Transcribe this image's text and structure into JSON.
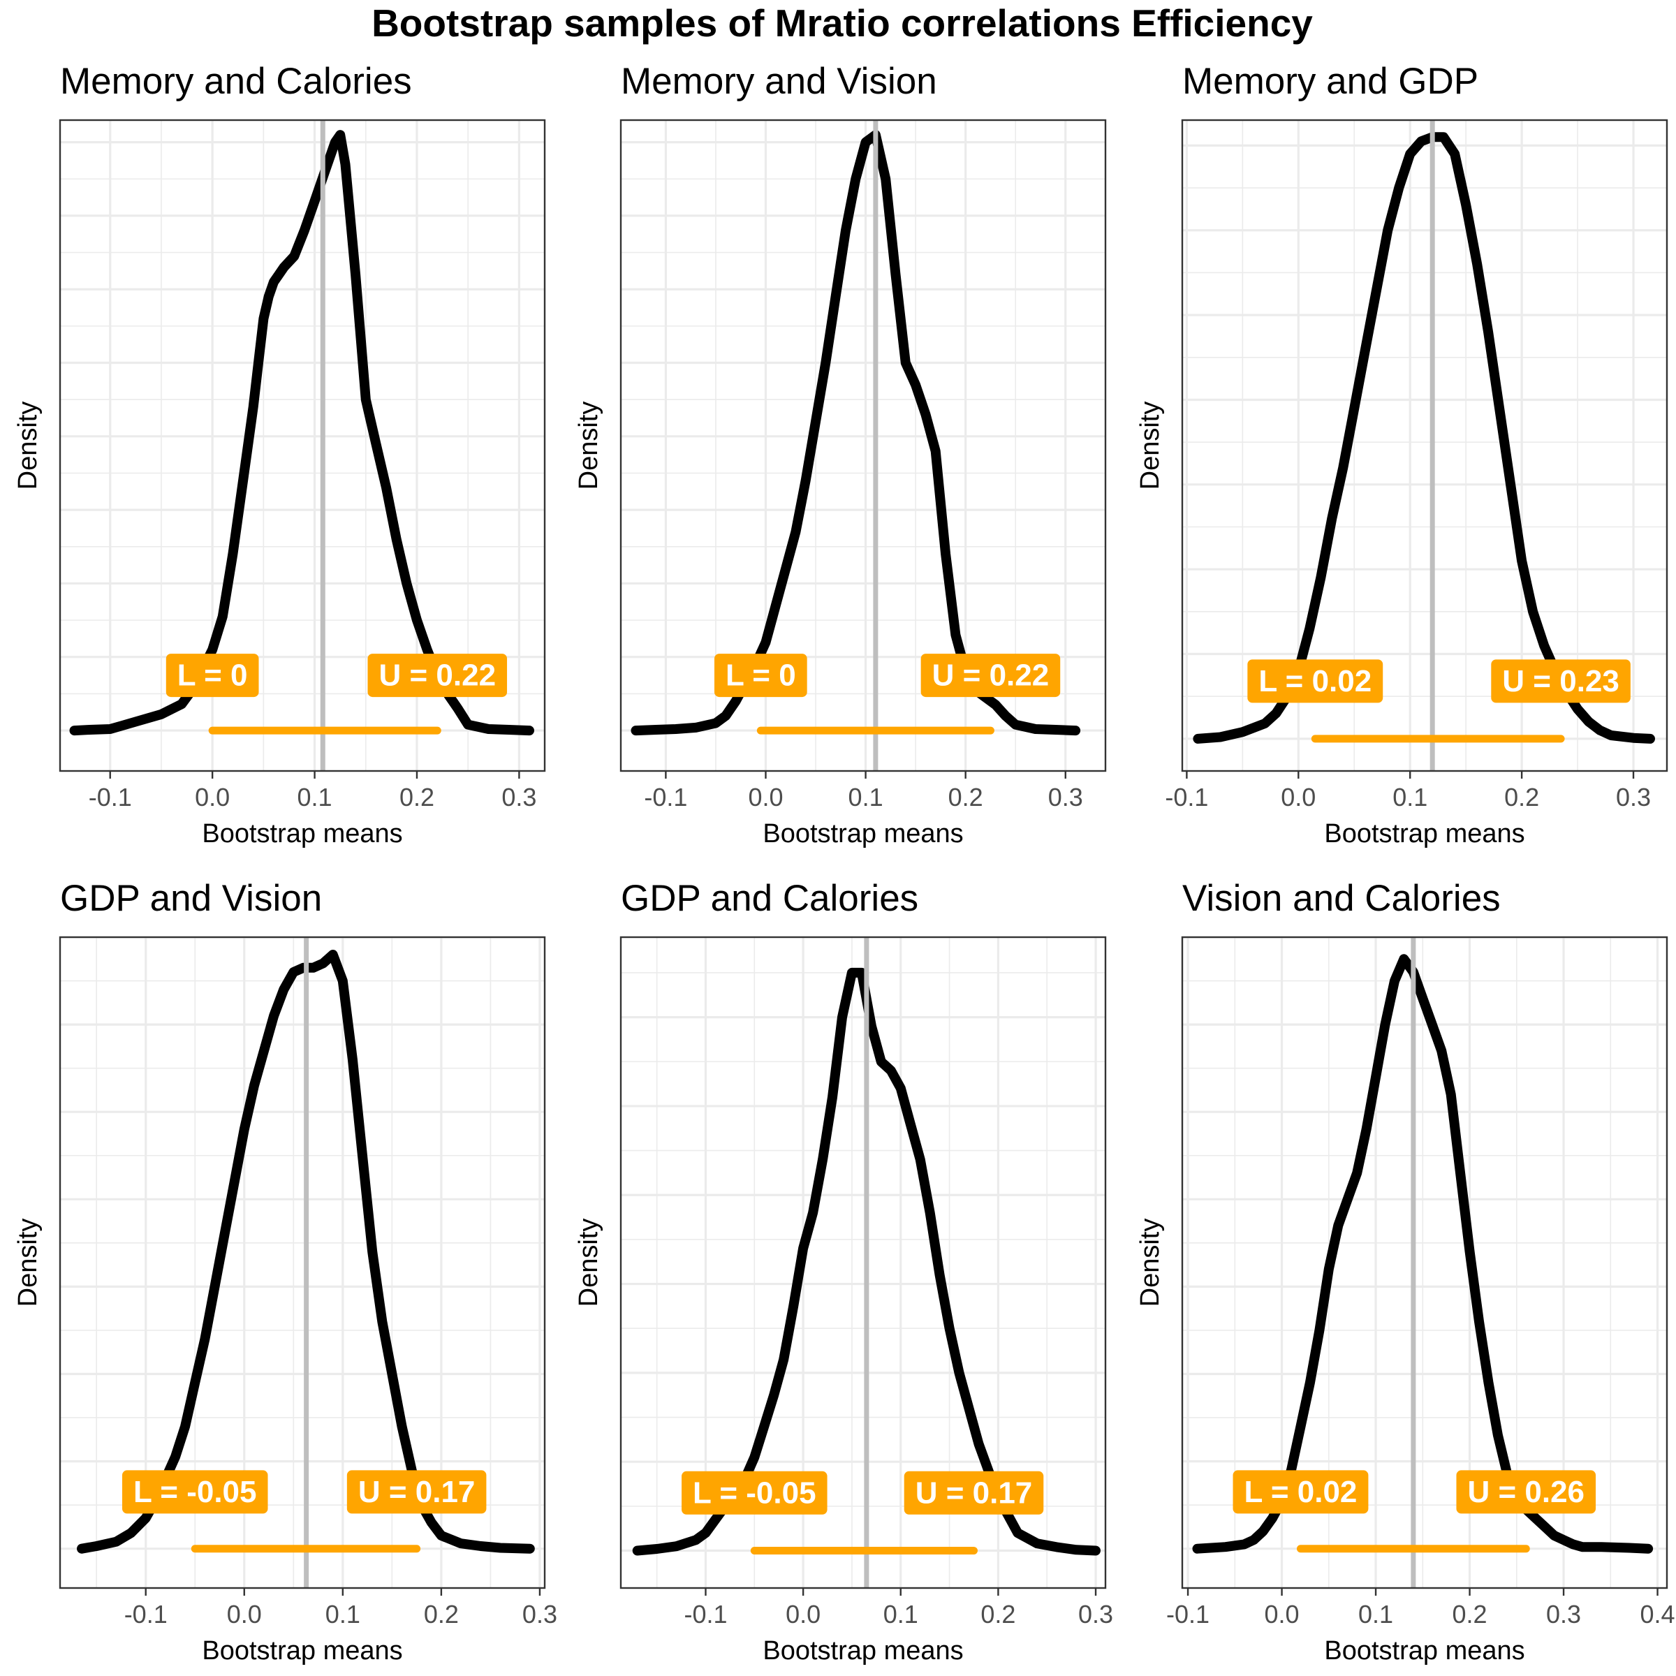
{
  "title": "Bootstrap samples of Mratio correlations Efficiency",
  "colors": {
    "density_line": "#000000",
    "mean_line": "#bebebe",
    "interval": "#FFA500",
    "label_text": "#ffffff",
    "grid": "#ebebeb",
    "panel_border": "#333333",
    "tick_text": "#4d4d4d"
  },
  "chart_data": [
    {
      "type": "line",
      "title": "Memory and Calories",
      "xlabel": "Bootstrap means",
      "ylabel": "Density",
      "xlim": [
        -0.149,
        0.325
      ],
      "ylim": [
        -0.55,
        8.3
      ],
      "xticks": [
        -0.1,
        0.0,
        0.1,
        0.2,
        0.3
      ],
      "tick_labels": [
        "-0.1",
        "0.0",
        "0.1",
        "0.2",
        "0.3"
      ],
      "mean": 0.108,
      "ci": {
        "lower": 0.0,
        "upper": 0.22
      },
      "ci_labels": {
        "lower": "L =  0",
        "upper": "U =  0.22"
      },
      "label_y": 0.75,
      "grid": true,
      "density": {
        "x": [
          -0.135,
          -0.12,
          -0.1,
          -0.09,
          -0.07,
          -0.05,
          -0.03,
          -0.02,
          -0.01,
          0.0,
          0.01,
          0.02,
          0.03,
          0.035,
          0.04,
          0.045,
          0.05,
          0.055,
          0.06,
          0.065,
          0.07,
          0.08,
          0.09,
          0.1,
          0.11,
          0.12,
          0.125,
          0.13,
          0.14,
          0.15,
          0.16,
          0.17,
          0.18,
          0.19,
          0.2,
          0.21,
          0.22,
          0.23,
          0.24,
          0.25,
          0.27,
          0.29,
          0.31
        ],
        "y": [
          0.0,
          0.01,
          0.02,
          0.06,
          0.14,
          0.22,
          0.36,
          0.55,
          0.82,
          1.1,
          1.55,
          2.4,
          3.4,
          3.9,
          4.4,
          5.0,
          5.6,
          5.9,
          6.1,
          6.2,
          6.3,
          6.45,
          6.8,
          7.2,
          7.6,
          8.0,
          8.1,
          7.7,
          6.2,
          4.5,
          3.9,
          3.3,
          2.6,
          2.0,
          1.5,
          1.1,
          0.75,
          0.5,
          0.3,
          0.08,
          0.02,
          0.01,
          0.0
        ]
      }
    },
    {
      "type": "line",
      "title": "Memory and Vision",
      "xlabel": "Bootstrap means",
      "ylabel": "Density",
      "xlim": [
        -0.145,
        0.34
      ],
      "ylim": [
        -0.55,
        8.3
      ],
      "xticks": [
        -0.1,
        0.0,
        0.1,
        0.2,
        0.3
      ],
      "tick_labels": [
        "-0.1",
        "0.0",
        "0.1",
        "0.2",
        "0.3"
      ],
      "mean": 0.11,
      "ci": {
        "lower": -0.005,
        "upper": 0.225
      },
      "ci_labels": {
        "lower": "L =  0",
        "upper": "U =  0.22"
      },
      "label_y": 0.75,
      "grid": true,
      "density": {
        "x": [
          -0.13,
          -0.11,
          -0.09,
          -0.07,
          -0.05,
          -0.04,
          -0.03,
          -0.02,
          -0.01,
          0.0,
          0.01,
          0.02,
          0.03,
          0.04,
          0.05,
          0.06,
          0.07,
          0.08,
          0.09,
          0.1,
          0.11,
          0.12,
          0.13,
          0.14,
          0.15,
          0.16,
          0.17,
          0.18,
          0.19,
          0.2,
          0.21,
          0.22,
          0.23,
          0.24,
          0.25,
          0.27,
          0.29,
          0.31
        ],
        "y": [
          0.0,
          0.01,
          0.02,
          0.04,
          0.1,
          0.2,
          0.4,
          0.65,
          0.9,
          1.2,
          1.7,
          2.2,
          2.7,
          3.4,
          4.2,
          5.0,
          5.9,
          6.8,
          7.5,
          8.0,
          8.1,
          7.5,
          6.2,
          5.0,
          4.7,
          4.3,
          3.8,
          2.4,
          1.3,
          0.8,
          0.55,
          0.45,
          0.35,
          0.2,
          0.08,
          0.02,
          0.01,
          0.0
        ]
      }
    },
    {
      "type": "line",
      "title": "Memory and GDP",
      "xlabel": "Bootstrap means",
      "ylabel": "Density",
      "xlim": [
        -0.104,
        0.33
      ],
      "ylim": [
        -0.38,
        7.3
      ],
      "xticks": [
        -0.1,
        0.0,
        0.1,
        0.2,
        0.3
      ],
      "tick_labels": [
        "-0.1",
        "0.0",
        "0.1",
        "0.2",
        "0.3"
      ],
      "mean": 0.12,
      "ci": {
        "lower": 0.015,
        "upper": 0.235
      },
      "ci_labels": {
        "lower": "L =  0.02",
        "upper": "U =  0.23"
      },
      "label_y": 0.68,
      "grid": true,
      "density": {
        "x": [
          -0.09,
          -0.07,
          -0.05,
          -0.03,
          -0.02,
          -0.01,
          0.0,
          0.01,
          0.02,
          0.03,
          0.04,
          0.05,
          0.06,
          0.07,
          0.08,
          0.09,
          0.1,
          0.11,
          0.12,
          0.13,
          0.14,
          0.15,
          0.16,
          0.17,
          0.18,
          0.19,
          0.2,
          0.21,
          0.22,
          0.23,
          0.24,
          0.25,
          0.26,
          0.27,
          0.28,
          0.3,
          0.315
        ],
        "y": [
          0.0,
          0.02,
          0.08,
          0.18,
          0.3,
          0.5,
          0.8,
          1.3,
          1.9,
          2.6,
          3.2,
          3.9,
          4.6,
          5.3,
          6.0,
          6.5,
          6.9,
          7.05,
          7.1,
          7.1,
          6.9,
          6.3,
          5.6,
          4.8,
          3.9,
          3.0,
          2.1,
          1.5,
          1.1,
          0.8,
          0.55,
          0.35,
          0.2,
          0.1,
          0.04,
          0.01,
          0.0
        ]
      }
    },
    {
      "type": "line",
      "title": "GDP and Vision",
      "xlabel": "Bootstrap means",
      "ylabel": "Density",
      "xlim": [
        -0.187,
        0.305
      ],
      "ylim": [
        -0.45,
        7.0
      ],
      "xticks": [
        -0.1,
        0.0,
        0.1,
        0.2,
        0.3
      ],
      "tick_labels": [
        "-0.1",
        "0.0",
        "0.1",
        "0.2",
        "0.3"
      ],
      "mean": 0.063,
      "ci": {
        "lower": -0.05,
        "upper": 0.175
      },
      "ci_labels": {
        "lower": "L =  -0.05",
        "upper": "U =  0.17"
      },
      "label_y": 0.65,
      "grid": true,
      "density": {
        "x": [
          -0.165,
          -0.15,
          -0.13,
          -0.115,
          -0.1,
          -0.09,
          -0.08,
          -0.07,
          -0.06,
          -0.05,
          -0.04,
          -0.03,
          -0.02,
          -0.01,
          0.0,
          0.01,
          0.02,
          0.03,
          0.04,
          0.05,
          0.06,
          0.07,
          0.08,
          0.09,
          0.1,
          0.11,
          0.12,
          0.13,
          0.14,
          0.15,
          0.16,
          0.17,
          0.18,
          0.19,
          0.2,
          0.22,
          0.24,
          0.26,
          0.29
        ],
        "y": [
          0.0,
          0.03,
          0.08,
          0.18,
          0.35,
          0.55,
          0.8,
          1.05,
          1.4,
          1.9,
          2.4,
          3.0,
          3.6,
          4.2,
          4.8,
          5.3,
          5.7,
          6.1,
          6.4,
          6.6,
          6.65,
          6.65,
          6.7,
          6.8,
          6.5,
          5.6,
          4.5,
          3.4,
          2.6,
          2.0,
          1.4,
          0.9,
          0.5,
          0.3,
          0.15,
          0.06,
          0.03,
          0.01,
          0.0
        ]
      }
    },
    {
      "type": "line",
      "title": "GDP and Calories",
      "xlabel": "Bootstrap means",
      "ylabel": "Density",
      "xlim": [
        -0.187,
        0.31
      ],
      "ylim": [
        -0.42,
        6.9
      ],
      "xticks": [
        -0.1,
        0.0,
        0.1,
        0.2,
        0.3
      ],
      "tick_labels": [
        "-0.1",
        "0.0",
        "0.1",
        "0.2",
        "0.3"
      ],
      "mean": 0.065,
      "ci": {
        "lower": -0.05,
        "upper": 0.175
      },
      "ci_labels": {
        "lower": "L =  -0.05",
        "upper": "U =  0.17"
      },
      "label_y": 0.65,
      "grid": true,
      "density": {
        "x": [
          -0.17,
          -0.15,
          -0.13,
          -0.11,
          -0.1,
          -0.09,
          -0.08,
          -0.07,
          -0.06,
          -0.05,
          -0.04,
          -0.03,
          -0.02,
          -0.01,
          0.0,
          0.01,
          0.02,
          0.03,
          0.04,
          0.05,
          0.06,
          0.07,
          0.08,
          0.09,
          0.1,
          0.11,
          0.12,
          0.13,
          0.14,
          0.15,
          0.16,
          0.17,
          0.18,
          0.19,
          0.2,
          0.21,
          0.22,
          0.24,
          0.26,
          0.28,
          0.3
        ],
        "y": [
          0.0,
          0.02,
          0.05,
          0.12,
          0.2,
          0.35,
          0.5,
          0.6,
          0.8,
          1.05,
          1.4,
          1.75,
          2.15,
          2.75,
          3.4,
          3.8,
          4.4,
          5.1,
          6.0,
          6.5,
          6.5,
          5.9,
          5.5,
          5.4,
          5.2,
          4.8,
          4.4,
          3.8,
          3.1,
          2.5,
          2.0,
          1.6,
          1.2,
          0.9,
          0.6,
          0.4,
          0.2,
          0.08,
          0.04,
          0.01,
          0.0
        ]
      }
    },
    {
      "type": "line",
      "title": "Vision and Calories",
      "xlabel": "Bootstrap means",
      "ylabel": "Density",
      "xlim": [
        -0.106,
        0.41
      ],
      "ylim": [
        -0.45,
        7.0
      ],
      "xticks": [
        -0.1,
        0.0,
        0.1,
        0.2,
        0.3,
        0.4
      ],
      "tick_labels": [
        "-0.1",
        "0.0",
        "0.1",
        "0.2",
        "0.3",
        "0.4"
      ],
      "mean": 0.14,
      "ci": {
        "lower": 0.02,
        "upper": 0.26
      },
      "ci_labels": {
        "lower": "L =  0.02",
        "upper": "U =  0.26"
      },
      "label_y": 0.65,
      "grid": true,
      "density": {
        "x": [
          -0.09,
          -0.06,
          -0.04,
          -0.03,
          -0.02,
          -0.01,
          0.0,
          0.01,
          0.02,
          0.03,
          0.04,
          0.05,
          0.06,
          0.07,
          0.08,
          0.09,
          0.1,
          0.11,
          0.12,
          0.13,
          0.14,
          0.15,
          0.16,
          0.17,
          0.18,
          0.19,
          0.2,
          0.21,
          0.22,
          0.23,
          0.24,
          0.25,
          0.26,
          0.27,
          0.28,
          0.29,
          0.3,
          0.31,
          0.32,
          0.34,
          0.37,
          0.39
        ],
        "y": [
          0.0,
          0.02,
          0.05,
          0.1,
          0.2,
          0.35,
          0.55,
          0.9,
          1.4,
          1.9,
          2.5,
          3.2,
          3.7,
          4.0,
          4.3,
          4.8,
          5.4,
          6.0,
          6.5,
          6.75,
          6.6,
          6.3,
          6.0,
          5.7,
          5.2,
          4.3,
          3.4,
          2.6,
          1.9,
          1.3,
          0.85,
          0.6,
          0.45,
          0.35,
          0.25,
          0.15,
          0.1,
          0.05,
          0.02,
          0.02,
          0.01,
          0.0
        ]
      }
    }
  ]
}
